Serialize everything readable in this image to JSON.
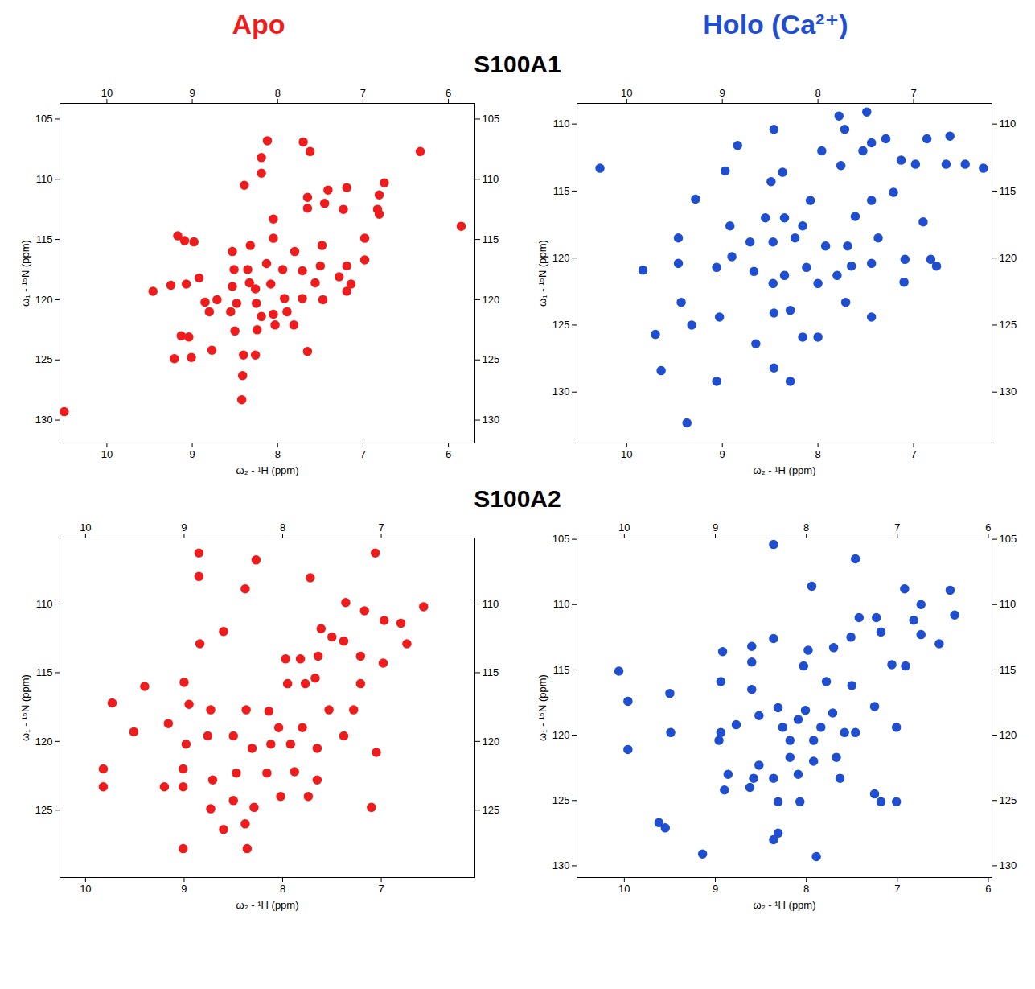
{
  "column_titles": [
    {
      "text": "Apo",
      "color": "#ee1c1c"
    },
    {
      "text": "Holo (Ca²⁺)",
      "color": "#1f4fd0"
    }
  ],
  "row_titles": [
    "S100A1",
    "S100A2"
  ],
  "chart_data": [
    {
      "type": "scatter",
      "x_label": "ω₂ - ¹H (ppm)",
      "y_label": "ω₁ - ¹⁵N (ppm)",
      "color": "#ee1c1c",
      "xlim": [
        10.55,
        5.69
      ],
      "ylim": [
        131.9,
        103.7
      ],
      "xticks": [
        10,
        9,
        8,
        7,
        6
      ],
      "yticks": [
        105,
        110,
        115,
        120,
        125,
        130
      ],
      "x": [
        10.5,
        8.12,
        7.7,
        7.62,
        6.33,
        8.19,
        8.19,
        8.39,
        6.75,
        7.19,
        7.41,
        6.81,
        6.83,
        7.65,
        7.65,
        7.45,
        7.23,
        6.81,
        8.05,
        9.17,
        9.09,
        8.98,
        8.05,
        7.48,
        6.98,
        8.53,
        8.32,
        7.8,
        9.46,
        8.92,
        8.51,
        8.35,
        8.13,
        7.5,
        6.98,
        7.19,
        9.25,
        8.53,
        8.33,
        8.08,
        7.94,
        7.71,
        7.56,
        7.28,
        7.14,
        9.07,
        8.71,
        8.85,
        8.48,
        8.25,
        7.92,
        7.71,
        7.47,
        7.19,
        8.26,
        8.19,
        8.05,
        7.89,
        8.8,
        8.55,
        9.13,
        9.04,
        8.5,
        8.24,
        8.03,
        7.81,
        9.21,
        9.01,
        8.77,
        8.4,
        8.26,
        7.65,
        8.41,
        8.42,
        5.85
      ],
      "values": [
        129.3,
        106.8,
        106.9,
        107.7,
        107.7,
        108.2,
        109.5,
        110.5,
        110.3,
        110.7,
        110.9,
        111.3,
        112.5,
        111.5,
        112.4,
        112.0,
        112.5,
        112.9,
        113.3,
        114.7,
        115.1,
        115.2,
        114.9,
        115.5,
        114.9,
        116.0,
        115.5,
        116.0,
        119.3,
        118.2,
        117.5,
        117.5,
        117.0,
        117.2,
        116.7,
        117.2,
        118.8,
        118.9,
        118.6,
        118.7,
        117.5,
        117.6,
        118.6,
        118.1,
        118.7,
        118.7,
        120.0,
        120.2,
        120.3,
        120.3,
        119.9,
        119.9,
        120.0,
        119.3,
        119.1,
        121.4,
        121.2,
        121.0,
        121.0,
        121.0,
        123.0,
        123.1,
        122.6,
        122.5,
        122.1,
        122.1,
        124.9,
        124.8,
        124.2,
        124.6,
        124.6,
        124.3,
        126.3,
        128.3,
        113.9
      ]
    },
    {
      "type": "scatter",
      "x_label": "ω₂ - ¹H (ppm)",
      "y_label": "ω₁ - ¹⁵N (ppm)",
      "color": "#1f4fd0",
      "xlim": [
        10.52,
        6.18
      ],
      "ylim": [
        133.8,
        108.46
      ],
      "xticks": [
        10,
        9,
        8,
        7
      ],
      "yticks": [
        110,
        115,
        120,
        125,
        130
      ],
      "x": [
        10.28,
        7.78,
        7.49,
        8.46,
        8.84,
        7.72,
        7.44,
        7.29,
        6.86,
        6.62,
        6.66,
        6.46,
        6.27,
        6.98,
        7.13,
        7.53,
        7.96,
        7.76,
        7.21,
        8.37,
        8.49,
        8.97,
        9.28,
        8.08,
        7.44,
        7.61,
        6.9,
        9.46,
        8.92,
        8.55,
        8.35,
        8.16,
        9.83,
        9.46,
        9.06,
        8.9,
        8.71,
        8.47,
        8.24,
        7.92,
        7.69,
        7.37,
        7.09,
        6.82,
        6.76,
        7.1,
        7.44,
        7.65,
        8.12,
        8.35,
        8.67,
        8.47,
        8.0,
        7.8,
        9.43,
        9.03,
        9.32,
        8.46,
        8.29,
        7.71,
        7.44,
        9.7,
        8.0,
        8.16,
        8.65,
        9.64,
        8.46,
        8.29,
        9.06,
        9.37
      ],
      "values": [
        113.3,
        109.4,
        109.1,
        110.4,
        111.6,
        110.4,
        111.4,
        111.1,
        111.1,
        110.9,
        113.0,
        113.0,
        113.3,
        113.0,
        112.7,
        112.0,
        112.0,
        113.1,
        115.1,
        113.6,
        114.3,
        113.5,
        115.6,
        115.7,
        115.7,
        116.9,
        117.3,
        118.5,
        117.6,
        117.0,
        117.0,
        117.6,
        120.9,
        120.4,
        120.7,
        119.9,
        118.8,
        118.8,
        118.5,
        119.1,
        119.1,
        118.5,
        120.1,
        120.1,
        120.6,
        121.8,
        120.4,
        120.6,
        120.7,
        121.3,
        121.0,
        121.9,
        121.9,
        121.3,
        123.3,
        124.4,
        125.0,
        124.1,
        123.9,
        123.3,
        124.4,
        125.7,
        125.9,
        125.9,
        126.4,
        128.4,
        128.2,
        129.2,
        129.2,
        132.3
      ]
    },
    {
      "type": "scatter",
      "x_label": "ω₂ - ¹H (ppm)",
      "y_label": "ω₁ - ¹⁵N (ppm)",
      "color": "#ee1c1c",
      "xlim": [
        10.26,
        6.05
      ],
      "ylim": [
        129.9,
        105.2
      ],
      "xticks": [
        10,
        9,
        8,
        7
      ],
      "yticks": [
        110,
        115,
        120,
        125
      ],
      "x": [
        8.85,
        8.85,
        8.27,
        8.38,
        7.72,
        7.06,
        7.36,
        7.17,
        6.97,
        6.8,
        6.57,
        6.74,
        7.61,
        7.5,
        7.38,
        8.6,
        8.84,
        7.97,
        7.82,
        7.64,
        7.21,
        6.98,
        9.4,
        9.0,
        7.95,
        7.77,
        7.67,
        7.21,
        9.73,
        9.51,
        9.16,
        8.95,
        8.73,
        8.37,
        8.14,
        8.04,
        7.8,
        7.53,
        7.28,
        8.98,
        8.76,
        8.5,
        8.31,
        8.12,
        7.92,
        7.65,
        7.38,
        7.05,
        9.82,
        9.82,
        9.01,
        8.71,
        8.47,
        8.16,
        7.88,
        7.65,
        9.01,
        9.2,
        8.73,
        8.5,
        8.29,
        8.02,
        7.74,
        7.1,
        8.38,
        8.6,
        9.01,
        8.36
      ],
      "values": [
        106.3,
        108.0,
        106.8,
        108.9,
        108.1,
        106.3,
        109.9,
        110.5,
        111.2,
        111.4,
        110.2,
        112.9,
        111.8,
        112.4,
        112.7,
        112.0,
        112.9,
        114.0,
        114.0,
        113.8,
        113.8,
        114.3,
        116.0,
        115.7,
        115.8,
        115.8,
        115.4,
        115.8,
        117.2,
        119.3,
        118.7,
        117.3,
        117.7,
        117.7,
        117.8,
        119.0,
        119.0,
        117.7,
        117.7,
        120.2,
        119.6,
        119.6,
        120.5,
        120.2,
        120.2,
        120.5,
        119.6,
        120.8,
        122.0,
        123.3,
        123.3,
        122.8,
        122.3,
        122.3,
        122.2,
        122.8,
        122.0,
        123.3,
        124.9,
        124.3,
        124.8,
        124.0,
        124.0,
        124.8,
        126.0,
        126.4,
        127.8,
        127.8
      ]
    },
    {
      "type": "scatter",
      "x_label": "ω₂ - ¹H (ppm)",
      "y_label": "ω₁ - ¹⁵N (ppm)",
      "color": "#1f4fd0",
      "xlim": [
        10.52,
        5.96
      ],
      "ylim": [
        130.9,
        104.9
      ],
      "xticks": [
        10,
        9,
        8,
        7,
        6
      ],
      "yticks": [
        105,
        110,
        115,
        120,
        125,
        130
      ],
      "x": [
        8.36,
        7.46,
        7.94,
        6.92,
        6.42,
        6.74,
        6.37,
        7.42,
        7.23,
        6.82,
        7.51,
        7.18,
        6.74,
        6.54,
        7.98,
        7.7,
        8.36,
        8.6,
        8.92,
        8.6,
        8.03,
        7.06,
        6.91,
        7.78,
        7.5,
        10.06,
        9.96,
        9.5,
        8.94,
        8.6,
        8.31,
        8.01,
        7.71,
        7.25,
        9.49,
        9.96,
        8.94,
        8.96,
        8.77,
        8.52,
        8.26,
        8.09,
        7.84,
        7.58,
        7.46,
        7.92,
        8.18,
        7.01,
        8.52,
        8.18,
        7.92,
        7.67,
        8.09,
        8.36,
        8.86,
        8.58,
        7.63,
        8.9,
        8.62,
        7.25,
        7.18,
        7.01,
        8.07,
        8.31,
        9.62,
        9.55,
        8.31,
        8.36,
        9.14,
        7.89
      ],
      "values": [
        105.4,
        106.5,
        108.6,
        108.8,
        108.9,
        110.0,
        110.8,
        111.0,
        111.0,
        111.2,
        112.5,
        112.1,
        112.3,
        113.0,
        113.5,
        113.3,
        112.6,
        113.2,
        113.6,
        114.4,
        114.7,
        114.6,
        114.7,
        115.9,
        116.2,
        115.1,
        117.4,
        116.8,
        115.9,
        116.5,
        117.9,
        118.1,
        118.3,
        117.8,
        119.8,
        121.1,
        119.8,
        120.4,
        119.2,
        118.5,
        119.4,
        118.8,
        119.4,
        119.8,
        119.8,
        120.4,
        120.4,
        119.4,
        122.3,
        121.7,
        122.0,
        121.7,
        123.0,
        123.3,
        123.0,
        123.3,
        123.3,
        124.2,
        124.0,
        124.5,
        125.1,
        125.1,
        125.1,
        125.1,
        126.7,
        127.1,
        127.5,
        128.0,
        129.1,
        129.3
      ]
    }
  ]
}
